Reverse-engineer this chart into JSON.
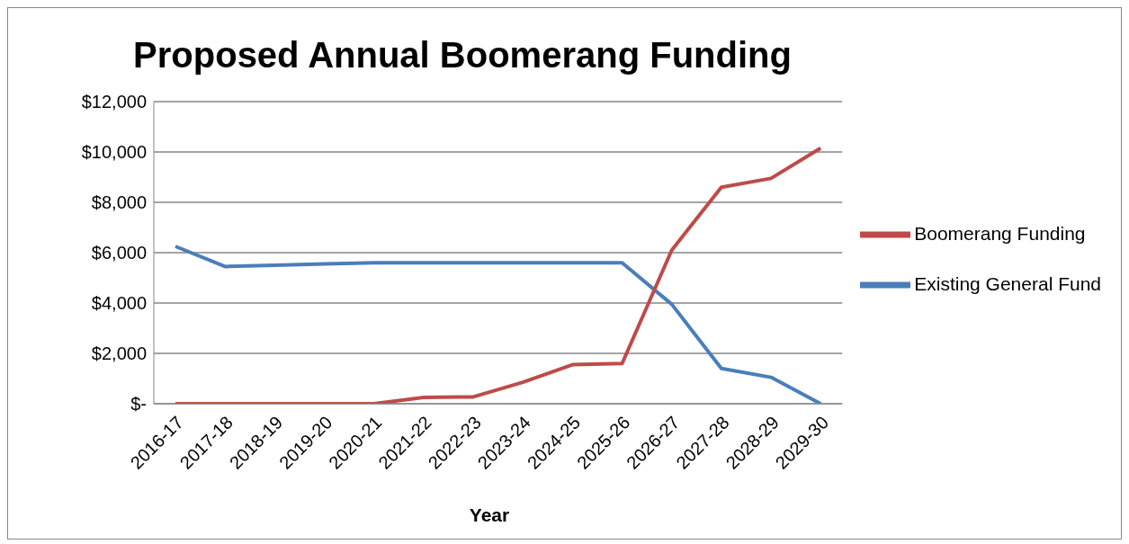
{
  "chart_data": {
    "type": "line",
    "title": "Proposed Annual Boomerang Funding",
    "xlabel": "Year",
    "categories": [
      "2016-17",
      "2017-18",
      "2018-19",
      "2019-20",
      "2020-21",
      "2021-22",
      "2022-23",
      "2023-24",
      "2024-25",
      "2025-26",
      "2026-27",
      "2027-28",
      "2028-29",
      "2029-30"
    ],
    "series": [
      {
        "name": "Existing General Fund",
        "color": "#4a7ebb",
        "values": [
          6250,
          5450,
          5500,
          5550,
          5600,
          5600,
          5600,
          5600,
          5600,
          5600,
          3950,
          1400,
          1050,
          0
        ]
      },
      {
        "name": "Boomerang Funding",
        "color": "#be4b48",
        "values": [
          0,
          0,
          0,
          0,
          0,
          250,
          270,
          850,
          1550,
          1600,
          6100,
          8600,
          8950,
          10150
        ]
      }
    ],
    "ylim": [
      0,
      12000
    ],
    "yticks": [
      {
        "value": 0,
        "label": "$-"
      },
      {
        "value": 2000,
        "label": "$2,000"
      },
      {
        "value": 4000,
        "label": "$4,000"
      },
      {
        "value": 6000,
        "label": "$6,000"
      },
      {
        "value": 8000,
        "label": "$8,000"
      },
      {
        "value": 10000,
        "label": "$10,000"
      },
      {
        "value": 12000,
        "label": "$12,000"
      }
    ],
    "grid": "y",
    "legend": "right",
    "marker": "none",
    "line_style": "solid"
  }
}
